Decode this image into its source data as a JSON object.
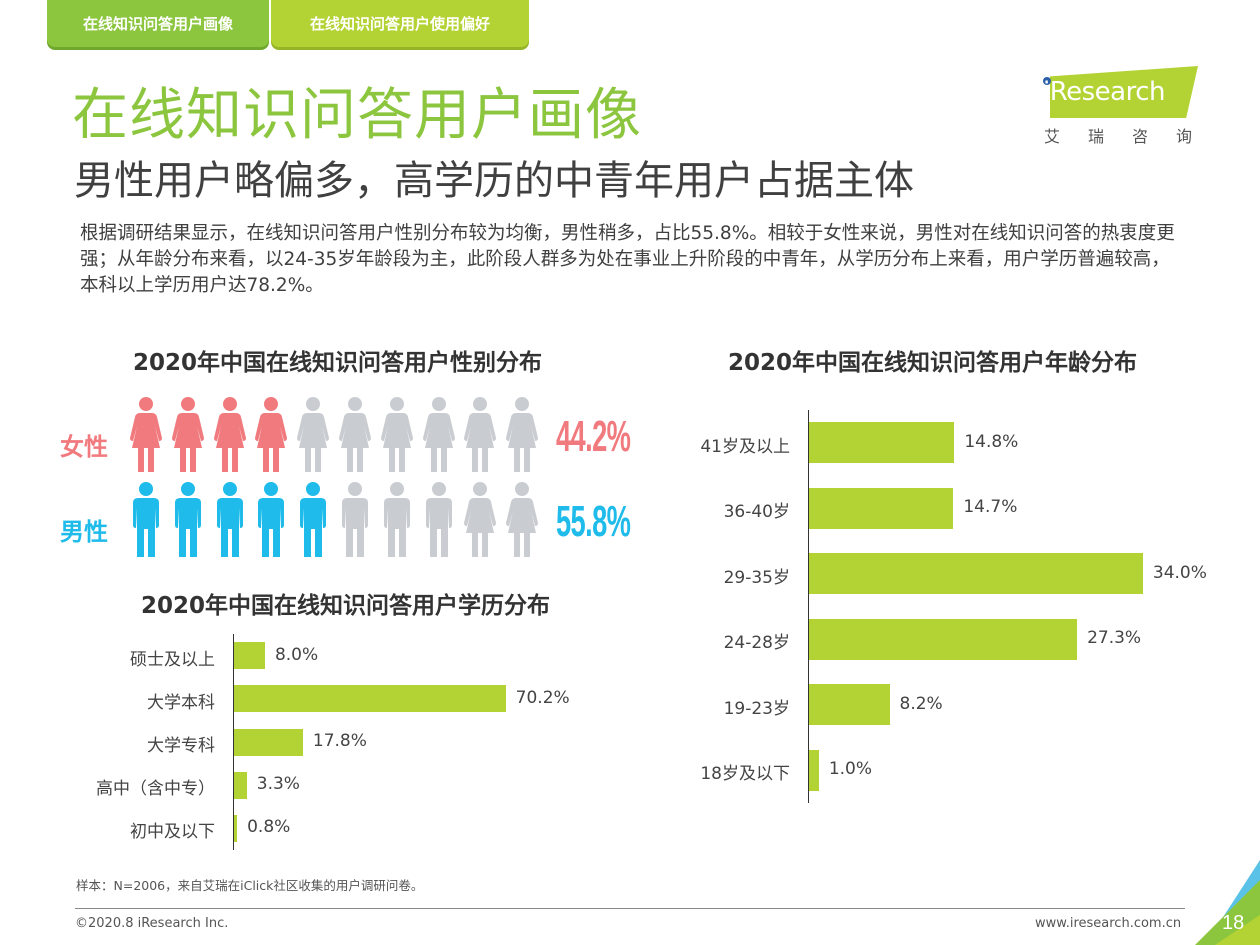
{
  "tabs": [
    {
      "label": "在线知识问答用户画像",
      "active": true
    },
    {
      "label": "在线知识问答用户使用偏好",
      "active": false
    }
  ],
  "logo": {
    "brand": "iResearch",
    "cn": "艾瑞咨询"
  },
  "header": {
    "title": "在线知识问答用户画像",
    "subtitle": "男性用户略偏多，高学历的中青年用户占据主体"
  },
  "summary": "根据调研结果显示，在线知识问答用户性别分布较为均衡，男性稍多，占比55.8%。相较于女性来说，男性对在线知识问答的热衷度更强；从年龄分布来看，以24-35岁年龄段为主，此阶段人群多为处在事业上升阶段的中青年，从学历分布上来看，用户学历普遍较高，本科以上学历用户达78.2%。",
  "colors": {
    "accent_green": "#8cc63f",
    "bar_green": "#b3d334",
    "female": "#f07a7e",
    "male": "#1fbbea",
    "inactive": "#c9ccd1"
  },
  "chart_data": [
    {
      "type": "pictogram",
      "title": "2020年中国在线知识问答用户性别分布",
      "series": [
        {
          "name": "女性",
          "value": 44.2,
          "label": "44.2%",
          "icons_filled": 4,
          "icons_total": 10
        },
        {
          "name": "男性",
          "value": 55.8,
          "label": "55.8%",
          "icons_filled": 5,
          "icons_total": 10
        }
      ],
      "unit": "%"
    },
    {
      "type": "bar",
      "orientation": "horizontal",
      "title": "2020年中国在线知识问答用户学历分布",
      "categories": [
        "硕士及以上",
        "大学本科",
        "大学专科",
        "高中（含中专）",
        "初中及以下"
      ],
      "values": [
        8.0,
        70.2,
        17.8,
        3.3,
        0.8
      ],
      "labels": [
        "8.0%",
        "70.2%",
        "17.8%",
        "3.3%",
        "0.8%"
      ],
      "xlim": [
        0,
        100
      ],
      "grid": false
    },
    {
      "type": "bar",
      "orientation": "horizontal",
      "title": "2020年中国在线知识问答用户年龄分布",
      "categories": [
        "41岁及以上",
        "36-40岁",
        "29-35岁",
        "24-28岁",
        "19-23岁",
        "18岁及以下"
      ],
      "values": [
        14.8,
        14.7,
        34.0,
        27.3,
        8.2,
        1.0
      ],
      "labels": [
        "14.8%",
        "14.7%",
        "34.0%",
        "27.3%",
        "8.2%",
        "1.0%"
      ],
      "xlim": [
        0,
        40
      ],
      "grid": false
    }
  ],
  "footer": {
    "note": "样本：N=2006，来自艾瑞在iClick社区收集的用户调研问卷。",
    "copyright": "©2020.8 iResearch Inc.",
    "website": "www.iresearch.com.cn",
    "page_number": "18"
  }
}
